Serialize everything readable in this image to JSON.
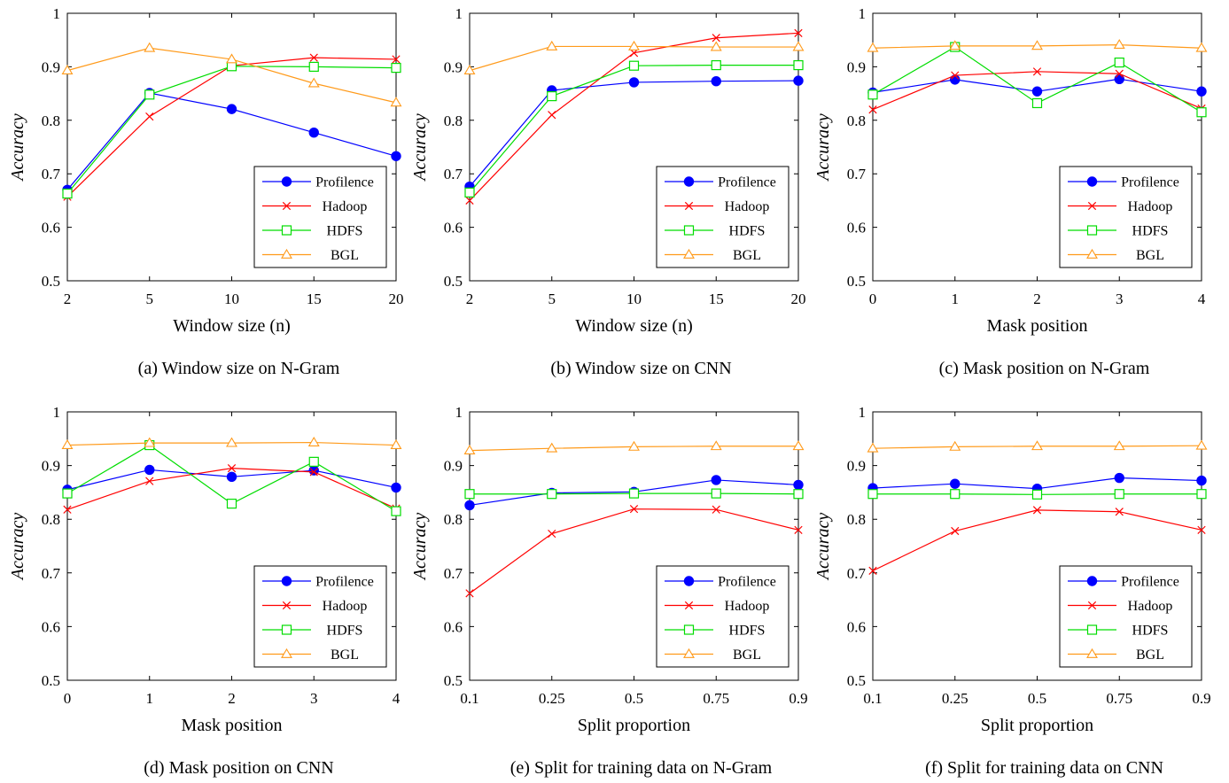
{
  "colors": {
    "Profilence": "#0000ff",
    "Hadoop": "#ff0000",
    "HDFS": "#00dd00",
    "BGL": "#ff9a1a"
  },
  "markers": {
    "Profilence": "filled-circle",
    "Hadoop": "x-cross",
    "HDFS": "open-square",
    "BGL": "open-triangle"
  },
  "chart_data": [
    {
      "type": "line",
      "caption": "(a) Window size on N-Gram",
      "xlabel": "Window size (n)",
      "ylabel": "Accuracy",
      "x": [
        "2",
        "5",
        "10",
        "15",
        "20"
      ],
      "ylim": [
        0.5,
        1
      ],
      "yticks": [
        "0.5",
        "0.6",
        "0.7",
        "0.8",
        "0.9",
        "1"
      ],
      "legend": "bottom-right",
      "grid": false,
      "series": [
        {
          "name": "Profilence",
          "values": [
            0.67,
            0.851,
            0.821,
            0.777,
            0.733
          ]
        },
        {
          "name": "Hadoop",
          "values": [
            0.657,
            0.807,
            0.902,
            0.917,
            0.914
          ]
        },
        {
          "name": "HDFS",
          "values": [
            0.663,
            0.848,
            0.901,
            0.9,
            0.898
          ]
        },
        {
          "name": "BGL",
          "values": [
            0.893,
            0.935,
            0.914,
            0.869,
            0.833
          ]
        }
      ]
    },
    {
      "type": "line",
      "caption": "(b) Window size on CNN",
      "xlabel": "Window size (n)",
      "ylabel": "Accuracy",
      "x": [
        "2",
        "5",
        "10",
        "15",
        "20"
      ],
      "ylim": [
        0.5,
        1
      ],
      "yticks": [
        "0.5",
        "0.6",
        "0.7",
        "0.8",
        "0.9",
        "1"
      ],
      "legend": "bottom-right",
      "grid": false,
      "series": [
        {
          "name": "Profilence",
          "values": [
            0.676,
            0.856,
            0.871,
            0.873,
            0.874
          ]
        },
        {
          "name": "Hadoop",
          "values": [
            0.65,
            0.81,
            0.926,
            0.954,
            0.963
          ]
        },
        {
          "name": "HDFS",
          "values": [
            0.665,
            0.845,
            0.902,
            0.903,
            0.903
          ]
        },
        {
          "name": "BGL",
          "values": [
            0.893,
            0.938,
            0.938,
            0.937,
            0.937
          ]
        }
      ]
    },
    {
      "type": "line",
      "caption": "(c) Mask position on N-Gram",
      "xlabel": "Mask position",
      "ylabel": "Accuracy",
      "x": [
        "0",
        "1",
        "2",
        "3",
        "4"
      ],
      "ylim": [
        0.5,
        1
      ],
      "yticks": [
        "0.5",
        "0.6",
        "0.7",
        "0.8",
        "0.9",
        "1"
      ],
      "legend": "bottom-right",
      "grid": false,
      "series": [
        {
          "name": "Profilence",
          "values": [
            0.852,
            0.876,
            0.854,
            0.877,
            0.854
          ]
        },
        {
          "name": "Hadoop",
          "values": [
            0.82,
            0.884,
            0.891,
            0.887,
            0.822
          ]
        },
        {
          "name": "HDFS",
          "values": [
            0.848,
            0.937,
            0.832,
            0.908,
            0.815
          ]
        },
        {
          "name": "BGL",
          "values": [
            0.935,
            0.939,
            0.939,
            0.941,
            0.935
          ]
        }
      ]
    },
    {
      "type": "line",
      "caption": "(d) Mask position on CNN",
      "xlabel": "Mask position",
      "ylabel": "Accuracy",
      "x": [
        "0",
        "1",
        "2",
        "3",
        "4"
      ],
      "ylim": [
        0.5,
        1
      ],
      "yticks": [
        "0.5",
        "0.6",
        "0.7",
        "0.8",
        "0.9",
        "1"
      ],
      "legend": "bottom-right",
      "grid": false,
      "series": [
        {
          "name": "Profilence",
          "values": [
            0.855,
            0.892,
            0.879,
            0.891,
            0.859
          ]
        },
        {
          "name": "Hadoop",
          "values": [
            0.818,
            0.871,
            0.895,
            0.888,
            0.82
          ]
        },
        {
          "name": "HDFS",
          "values": [
            0.848,
            0.938,
            0.829,
            0.907,
            0.815
          ]
        },
        {
          "name": "BGL",
          "values": [
            0.938,
            0.942,
            0.942,
            0.943,
            0.938
          ]
        }
      ]
    },
    {
      "type": "line",
      "caption": "(e) Split for training data on N-Gram",
      "xlabel": "Split proportion",
      "ylabel": "Accuracy",
      "x": [
        "0.1",
        "0.25",
        "0.5",
        "0.75",
        "0.9"
      ],
      "ylim": [
        0.5,
        1
      ],
      "yticks": [
        "0.5",
        "0.6",
        "0.7",
        "0.8",
        "0.9",
        "1"
      ],
      "legend": "bottom-right",
      "grid": false,
      "series": [
        {
          "name": "Profilence",
          "values": [
            0.826,
            0.849,
            0.851,
            0.873,
            0.864
          ]
        },
        {
          "name": "Hadoop",
          "values": [
            0.662,
            0.773,
            0.819,
            0.818,
            0.78
          ]
        },
        {
          "name": "HDFS",
          "values": [
            0.847,
            0.847,
            0.848,
            0.848,
            0.847
          ]
        },
        {
          "name": "BGL",
          "values": [
            0.928,
            0.932,
            0.935,
            0.936,
            0.936
          ]
        }
      ]
    },
    {
      "type": "line",
      "caption": "(f) Split for training data on CNN",
      "xlabel": "Split proportion",
      "ylabel": "Accuracy",
      "x": [
        "0.1",
        "0.25",
        "0.5",
        "0.75",
        "0.9"
      ],
      "ylim": [
        0.5,
        1
      ],
      "yticks": [
        "0.5",
        "0.6",
        "0.7",
        "0.8",
        "0.9",
        "1"
      ],
      "legend": "bottom-right",
      "grid": false,
      "series": [
        {
          "name": "Profilence",
          "values": [
            0.858,
            0.866,
            0.857,
            0.877,
            0.872
          ]
        },
        {
          "name": "Hadoop",
          "values": [
            0.704,
            0.778,
            0.817,
            0.814,
            0.78
          ]
        },
        {
          "name": "HDFS",
          "values": [
            0.847,
            0.847,
            0.846,
            0.847,
            0.847
          ]
        },
        {
          "name": "BGL",
          "values": [
            0.932,
            0.935,
            0.936,
            0.936,
            0.937
          ]
        }
      ]
    }
  ]
}
